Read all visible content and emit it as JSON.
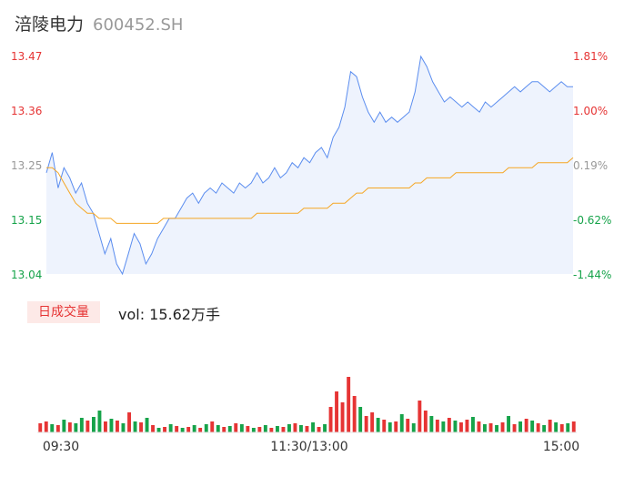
{
  "header": {
    "stock_name": "涪陵电力",
    "stock_code": "600452.SH"
  },
  "volume_panel": {
    "badge_label": "日成交量",
    "vol_label": "vol: 15.62万手"
  },
  "colors": {
    "price_line": "#5b8def",
    "avg_line": "#f5a623",
    "up": "#e63434",
    "down": "#16a34a",
    "neutral": "#999999",
    "area_fill": "#eef3fd"
  },
  "chart_data": [
    {
      "type": "line",
      "series": [
        {
          "values": [
            13.24,
            13.28,
            13.21,
            13.25,
            13.23,
            13.2,
            13.22,
            13.18,
            13.16,
            13.12,
            13.08,
            13.11,
            13.06,
            13.04,
            13.08,
            13.12,
            13.1,
            13.06,
            13.08,
            13.11,
            13.13,
            13.15,
            13.15,
            13.17,
            13.19,
            13.2,
            13.18,
            13.2,
            13.21,
            13.2,
            13.22,
            13.21,
            13.2,
            13.22,
            13.21,
            13.22,
            13.24,
            13.22,
            13.23,
            13.25,
            13.23,
            13.24,
            13.26,
            13.25,
            13.27,
            13.26,
            13.28,
            13.29,
            13.27,
            13.31,
            13.33,
            13.37,
            13.44,
            13.43,
            13.39,
            13.36,
            13.34,
            13.36,
            13.34,
            13.35,
            13.34,
            13.35,
            13.36,
            13.4,
            13.47,
            13.45,
            13.42,
            13.4,
            13.38,
            13.39,
            13.38,
            13.37,
            13.38,
            13.37,
            13.36,
            13.38,
            13.37,
            13.38,
            13.39,
            13.4,
            13.41,
            13.4,
            13.41,
            13.42,
            13.42,
            13.41,
            13.4,
            13.41,
            13.42,
            13.41,
            13.41
          ]
        },
        {
          "values": [
            13.25,
            13.25,
            13.24,
            13.22,
            13.2,
            13.18,
            13.17,
            13.16,
            13.16,
            13.15,
            13.15,
            13.15,
            13.14,
            13.14,
            13.14,
            13.14,
            13.14,
            13.14,
            13.14,
            13.14,
            13.15,
            13.15,
            13.15,
            13.15,
            13.15,
            13.15,
            13.15,
            13.15,
            13.15,
            13.15,
            13.15,
            13.15,
            13.15,
            13.15,
            13.15,
            13.15,
            13.16,
            13.16,
            13.16,
            13.16,
            13.16,
            13.16,
            13.16,
            13.16,
            13.17,
            13.17,
            13.17,
            13.17,
            13.17,
            13.18,
            13.18,
            13.18,
            13.19,
            13.2,
            13.2,
            13.21,
            13.21,
            13.21,
            13.21,
            13.21,
            13.21,
            13.21,
            13.21,
            13.22,
            13.22,
            13.23,
            13.23,
            13.23,
            13.23,
            13.23,
            13.24,
            13.24,
            13.24,
            13.24,
            13.24,
            13.24,
            13.24,
            13.24,
            13.24,
            13.25,
            13.25,
            13.25,
            13.25,
            13.25,
            13.26,
            13.26,
            13.26,
            13.26,
            13.26,
            13.26,
            13.27
          ]
        }
      ],
      "ylim": [
        13.04,
        13.47
      ],
      "left_ticks": [
        "13.47",
        "13.36",
        "13.25",
        "13.15",
        "13.04"
      ],
      "right_ticks": [
        "1.81%",
        "1.00%",
        "0.19%",
        "-0.62%",
        "-1.44%"
      ],
      "grid": false
    },
    {
      "type": "bar",
      "x_ticks": [
        "09:30",
        "11:30/13:00",
        "15:00"
      ],
      "values": [
        10,
        12,
        9,
        8,
        14,
        11,
        10,
        16,
        13,
        17,
        24,
        12,
        15,
        13,
        10,
        22,
        12,
        11,
        16,
        8,
        5,
        6,
        9,
        7,
        5,
        6,
        8,
        5,
        9,
        12,
        8,
        6,
        7,
        10,
        9,
        7,
        5,
        6,
        8,
        5,
        7,
        6,
        9,
        10,
        8,
        7,
        11,
        6,
        9,
        28,
        45,
        33,
        61,
        40,
        28,
        18,
        22,
        16,
        14,
        11,
        12,
        20,
        15,
        10,
        35,
        24,
        18,
        14,
        12,
        16,
        13,
        11,
        14,
        17,
        12,
        9,
        10,
        8,
        11,
        18,
        9,
        12,
        15,
        13,
        10,
        8,
        14,
        11,
        9,
        10,
        12
      ],
      "colors": [
        "r",
        "r",
        "g",
        "r",
        "g",
        "r",
        "g",
        "g",
        "r",
        "g",
        "g",
        "r",
        "g",
        "r",
        "g",
        "r",
        "g",
        "r",
        "g",
        "r",
        "g",
        "r",
        "g",
        "r",
        "g",
        "r",
        "g",
        "r",
        "g",
        "r",
        "g",
        "r",
        "g",
        "r",
        "g",
        "r",
        "g",
        "r",
        "g",
        "r",
        "g",
        "r",
        "g",
        "r",
        "g",
        "r",
        "g",
        "r",
        "g",
        "r",
        "r",
        "r",
        "r",
        "r",
        "g",
        "r",
        "r",
        "g",
        "r",
        "g",
        "r",
        "g",
        "r",
        "g",
        "r",
        "r",
        "g",
        "r",
        "g",
        "r",
        "g",
        "r",
        "r",
        "g",
        "r",
        "g",
        "r",
        "g",
        "r",
        "g",
        "r",
        "g",
        "r",
        "g",
        "r",
        "g",
        "r",
        "g",
        "r",
        "g",
        "r"
      ]
    }
  ]
}
